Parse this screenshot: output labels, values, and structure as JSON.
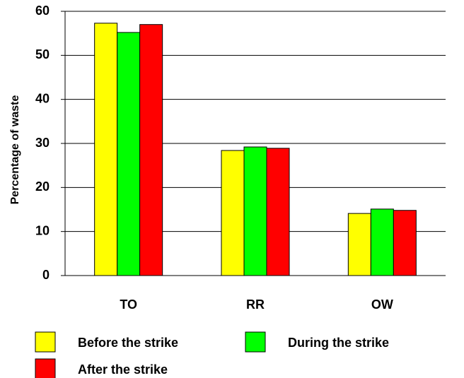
{
  "chart_data": {
    "type": "bar",
    "y_label": "Percentage of waste",
    "categories": [
      "TO",
      "RR",
      "OW"
    ],
    "series": [
      {
        "name": "Before the strike",
        "color": "#ffff00",
        "values": [
          57.3,
          28.4,
          14.1
        ]
      },
      {
        "name": "During the strike",
        "color": "#00ff00",
        "values": [
          55.2,
          29.2,
          15.1
        ]
      },
      {
        "name": "After the strike",
        "color": "#ff0000",
        "values": [
          57.0,
          28.9,
          14.8
        ]
      }
    ],
    "ylim": [
      0,
      60
    ],
    "yticks": [
      0,
      10,
      20,
      30,
      40,
      50,
      60
    ],
    "grid": true,
    "legend": "bottom"
  }
}
